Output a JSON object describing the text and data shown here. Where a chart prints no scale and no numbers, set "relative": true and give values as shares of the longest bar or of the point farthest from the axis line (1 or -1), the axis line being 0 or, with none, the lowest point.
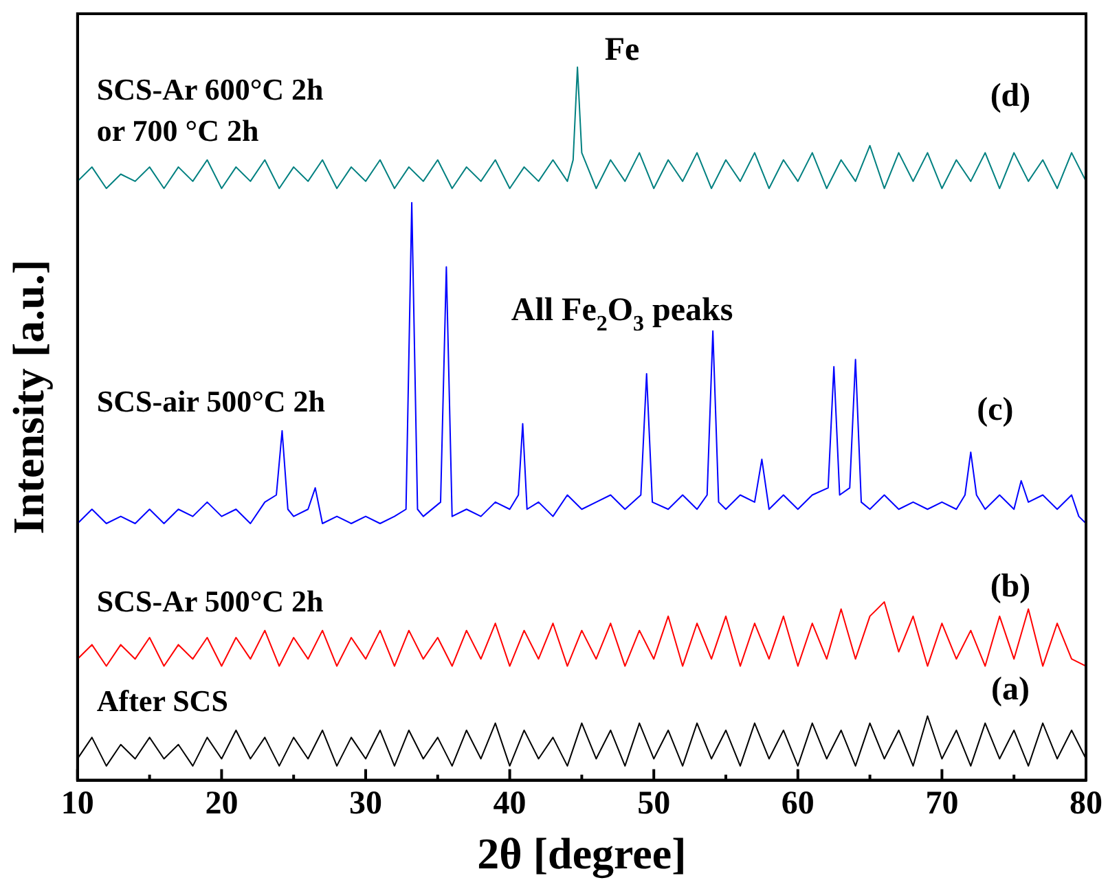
{
  "chart_data": {
    "type": "line",
    "relative": true,
    "xlabel": "2θ [degree]",
    "ylabel": "Intensity [a.u.]",
    "xlim": [
      10,
      80
    ],
    "xticks": [
      10,
      {
        "value": 15,
        "label": null
      },
      20,
      {
        "value": 25,
        "label": null
      },
      30,
      {
        "value": 35,
        "label": null
      },
      40,
      {
        "value": 45,
        "label": null
      },
      50,
      {
        "value": 55,
        "label": null
      },
      60,
      {
        "value": 65,
        "label": null
      },
      70,
      {
        "value": 75,
        "label": null
      },
      80
    ],
    "grid": false,
    "legend": false,
    "marker": "none",
    "line_style": "solid",
    "series": [
      {
        "name": "After SCS",
        "color": "#000000",
        "x": [
          10,
          11,
          12,
          13,
          14,
          15,
          16,
          17,
          18,
          19,
          20,
          21,
          22,
          23,
          24,
          25,
          26,
          27,
          28,
          29,
          30,
          31,
          32,
          33,
          34,
          35,
          36,
          37,
          38,
          39,
          40,
          41,
          42,
          43,
          44,
          45,
          46,
          47,
          48,
          49,
          50,
          51,
          52,
          53,
          54,
          55,
          56,
          57,
          58,
          59,
          60,
          61,
          62,
          63,
          64,
          65,
          66,
          67,
          68,
          69,
          70,
          71,
          72,
          73,
          74,
          75,
          76,
          77,
          78,
          79,
          80
        ],
        "values": [
          0.03,
          0.06,
          0.02,
          0.05,
          0.03,
          0.06,
          0.03,
          0.05,
          0.02,
          0.06,
          0.03,
          0.07,
          0.03,
          0.06,
          0.02,
          0.06,
          0.03,
          0.07,
          0.02,
          0.06,
          0.03,
          0.07,
          0.02,
          0.07,
          0.03,
          0.06,
          0.02,
          0.07,
          0.03,
          0.08,
          0.02,
          0.07,
          0.03,
          0.06,
          0.02,
          0.08,
          0.03,
          0.07,
          0.02,
          0.08,
          0.03,
          0.07,
          0.02,
          0.08,
          0.03,
          0.07,
          0.02,
          0.08,
          0.03,
          0.07,
          0.02,
          0.08,
          0.03,
          0.07,
          0.02,
          0.08,
          0.03,
          0.07,
          0.02,
          0.09,
          0.03,
          0.07,
          0.02,
          0.08,
          0.03,
          0.07,
          0.02,
          0.08,
          0.03,
          0.07,
          0.03
        ]
      },
      {
        "name": "SCS-Ar 500°C 2h",
        "color": "#ff0000",
        "x": [
          10,
          11,
          12,
          13,
          14,
          15,
          16,
          17,
          18,
          19,
          20,
          21,
          22,
          23,
          24,
          25,
          26,
          27,
          28,
          29,
          30,
          31,
          32,
          33,
          34,
          35,
          36,
          37,
          38,
          39,
          40,
          41,
          42,
          43,
          44,
          45,
          46,
          47,
          48,
          49,
          50,
          51,
          52,
          53,
          54,
          55,
          56,
          57,
          58,
          59,
          60,
          61,
          62,
          63,
          64,
          65,
          66,
          67,
          68,
          69,
          70,
          71,
          72,
          73,
          74,
          75,
          76,
          77,
          78,
          79,
          80
        ],
        "values": [
          0.17,
          0.19,
          0.16,
          0.19,
          0.17,
          0.2,
          0.16,
          0.19,
          0.17,
          0.2,
          0.16,
          0.2,
          0.17,
          0.21,
          0.16,
          0.2,
          0.17,
          0.21,
          0.16,
          0.2,
          0.17,
          0.21,
          0.16,
          0.21,
          0.17,
          0.2,
          0.16,
          0.21,
          0.17,
          0.22,
          0.16,
          0.21,
          0.17,
          0.22,
          0.16,
          0.21,
          0.17,
          0.22,
          0.16,
          0.21,
          0.17,
          0.23,
          0.16,
          0.22,
          0.17,
          0.23,
          0.16,
          0.22,
          0.17,
          0.23,
          0.16,
          0.22,
          0.17,
          0.24,
          0.17,
          0.23,
          0.25,
          0.18,
          0.23,
          0.16,
          0.22,
          0.17,
          0.21,
          0.16,
          0.23,
          0.17,
          0.24,
          0.16,
          0.22,
          0.17,
          0.16
        ]
      },
      {
        "name": "SCS-air 500°C 2h",
        "color": "#0000ff",
        "x": [
          10,
          11,
          12,
          13,
          14,
          15,
          16,
          17,
          18,
          19,
          20,
          21,
          22,
          23,
          23.8,
          24.2,
          24.6,
          25,
          26,
          26.5,
          27,
          28,
          29,
          30,
          31,
          32,
          32.8,
          33.2,
          33.6,
          34,
          35.2,
          35.6,
          36,
          37,
          38,
          39,
          40,
          40.6,
          40.9,
          41.2,
          42,
          43,
          44,
          45,
          46,
          47,
          48,
          49.1,
          49.5,
          49.9,
          51,
          52,
          53,
          53.7,
          54.1,
          54.5,
          55,
          56,
          57,
          57.5,
          58,
          59,
          60,
          61,
          62.1,
          62.5,
          62.9,
          63.6,
          64,
          64.4,
          65,
          66,
          67,
          68,
          69,
          70,
          71,
          71.6,
          72,
          72.4,
          73,
          74,
          75,
          75.5,
          76,
          77,
          78,
          79,
          79.5,
          80
        ],
        "values": [
          0.36,
          0.38,
          0.36,
          0.37,
          0.36,
          0.38,
          0.36,
          0.38,
          0.37,
          0.39,
          0.37,
          0.38,
          0.36,
          0.39,
          0.4,
          0.49,
          0.38,
          0.37,
          0.38,
          0.41,
          0.36,
          0.37,
          0.36,
          0.37,
          0.36,
          0.37,
          0.38,
          0.81,
          0.38,
          0.37,
          0.39,
          0.72,
          0.37,
          0.38,
          0.37,
          0.39,
          0.38,
          0.4,
          0.5,
          0.38,
          0.39,
          0.37,
          0.4,
          0.38,
          0.39,
          0.4,
          0.38,
          0.4,
          0.57,
          0.39,
          0.38,
          0.4,
          0.38,
          0.4,
          0.63,
          0.39,
          0.38,
          0.4,
          0.39,
          0.45,
          0.38,
          0.4,
          0.38,
          0.4,
          0.41,
          0.58,
          0.4,
          0.41,
          0.59,
          0.39,
          0.38,
          0.4,
          0.38,
          0.39,
          0.38,
          0.39,
          0.38,
          0.4,
          0.46,
          0.4,
          0.38,
          0.4,
          0.38,
          0.42,
          0.39,
          0.4,
          0.38,
          0.4,
          0.37,
          0.36
        ]
      },
      {
        "name": "SCS-Ar 600°C 2h\nor 700 °C 2h",
        "color": "#008080",
        "x": [
          10,
          11,
          12,
          13,
          14,
          15,
          16,
          17,
          18,
          19,
          20,
          21,
          22,
          23,
          24,
          25,
          26,
          27,
          28,
          29,
          30,
          31,
          32,
          33,
          34,
          35,
          36,
          37,
          38,
          39,
          40,
          41,
          42,
          43,
          44,
          44.4,
          44.7,
          45,
          46,
          47,
          48,
          49,
          50,
          51,
          52,
          53,
          54,
          55,
          56,
          57,
          58,
          59,
          60,
          61,
          62,
          63,
          64,
          65,
          66,
          67,
          68,
          69,
          70,
          71,
          72,
          73,
          74,
          75,
          76,
          77,
          78,
          79,
          80
        ],
        "values": [
          0.84,
          0.86,
          0.83,
          0.85,
          0.84,
          0.86,
          0.83,
          0.86,
          0.84,
          0.87,
          0.83,
          0.86,
          0.84,
          0.87,
          0.83,
          0.86,
          0.84,
          0.87,
          0.83,
          0.86,
          0.84,
          0.87,
          0.83,
          0.86,
          0.84,
          0.87,
          0.83,
          0.86,
          0.84,
          0.87,
          0.83,
          0.86,
          0.84,
          0.87,
          0.84,
          0.87,
          1,
          0.88,
          0.83,
          0.87,
          0.84,
          0.88,
          0.83,
          0.87,
          0.84,
          0.88,
          0.83,
          0.87,
          0.84,
          0.88,
          0.83,
          0.87,
          0.84,
          0.88,
          0.83,
          0.87,
          0.84,
          0.89,
          0.83,
          0.88,
          0.84,
          0.88,
          0.83,
          0.87,
          0.84,
          0.88,
          0.83,
          0.88,
          0.84,
          0.87,
          0.83,
          0.88,
          0.84
        ]
      }
    ],
    "annotations": [
      "(a)",
      "(b)",
      "(c)",
      "(d)",
      "Fe",
      "All Fe$_{2}$O$_{3}$ peaks"
    ]
  }
}
